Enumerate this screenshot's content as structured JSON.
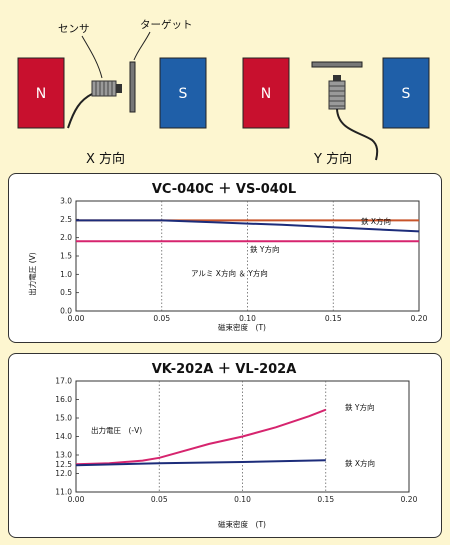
{
  "diagram": {
    "magnet_n_left": "N",
    "magnet_s_left": "S",
    "magnet_n_right": "N",
    "magnet_s_right": "S",
    "sensor_label": "センサ",
    "target_label": "ターゲット",
    "x_direction_label": "X 方向",
    "y_direction_label": "Y 方向",
    "colors": {
      "magnet": "#c8102e",
      "magnet_s": "#1f5fa8"
    }
  },
  "chart_data": [
    {
      "type": "line",
      "title": "VC-040C ＋ VS-040L",
      "xlabel": "磁束密度　(T)",
      "ylabel": "出力電圧 (V)",
      "xlim": [
        0,
        0.2
      ],
      "ylim": [
        0,
        3.0
      ],
      "xticks": [
        "0.00",
        "0.05",
        "0.10",
        "0.15",
        "0.20"
      ],
      "yticks": [
        "0.0",
        "0.5",
        "1.0",
        "1.5",
        "2.0",
        "2.5",
        "3.0"
      ],
      "grid": "dotted-vertical",
      "series": [
        {
          "name": "鉄 X方向",
          "color": "#c8542a",
          "x": [
            0,
            0.2
          ],
          "y": [
            2.47,
            2.47
          ]
        },
        {
          "name": "鉄 Y方向",
          "color": "#1c2c7a",
          "x": [
            0,
            0.05,
            0.08,
            0.12,
            0.16,
            0.2
          ],
          "y": [
            2.47,
            2.47,
            2.42,
            2.35,
            2.26,
            2.17
          ]
        },
        {
          "name": "アルミ X方向 ＆ Y方向",
          "color": "#d6246e",
          "x": [
            0,
            0.2
          ],
          "y": [
            1.9,
            1.9
          ]
        }
      ]
    },
    {
      "type": "line",
      "title": "VK-202A ＋ VL-202A",
      "xlabel": "磁束密度　(T)",
      "ylabel": "出力電圧　(-V)",
      "xlim": [
        0,
        0.2
      ],
      "ylim": [
        11.0,
        17.0
      ],
      "xticks": [
        "0.00",
        "0.05",
        "0.10",
        "0.15",
        "0.20"
      ],
      "yticks": [
        "11.0",
        "12.0",
        "12.5",
        "13.0",
        "14.0",
        "15.0",
        "16.0",
        "17.0"
      ],
      "grid": "dotted-vertical",
      "series": [
        {
          "name": "鉄 Y方向",
          "color": "#d6246e",
          "x": [
            0,
            0.02,
            0.04,
            0.05,
            0.06,
            0.08,
            0.1,
            0.12,
            0.14,
            0.15
          ],
          "y": [
            12.5,
            12.55,
            12.7,
            12.85,
            13.1,
            13.6,
            14.0,
            14.5,
            15.1,
            15.45
          ]
        },
        {
          "name": "鉄 X方向",
          "color": "#1c2c7a",
          "x": [
            0,
            0.05,
            0.1,
            0.15
          ],
          "y": [
            12.45,
            12.55,
            12.62,
            12.72
          ]
        }
      ]
    }
  ]
}
